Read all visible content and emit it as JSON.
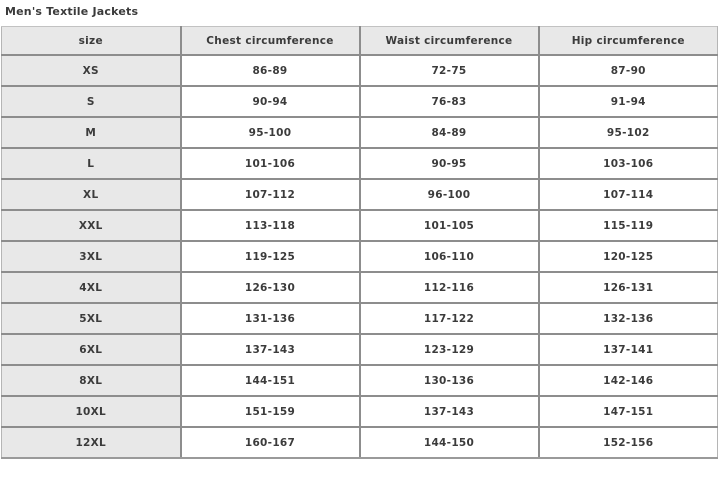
{
  "page": {
    "title": "Men's Textile Jackets"
  },
  "table": {
    "columns": [
      "size",
      "Chest circumference",
      "Waist circumference",
      "Hip circumference"
    ],
    "rows": [
      {
        "size": "XS",
        "values": [
          "86-89",
          "72-75",
          "87-90"
        ]
      },
      {
        "size": "S",
        "values": [
          "90-94",
          "76-83",
          "91-94"
        ]
      },
      {
        "size": "M",
        "values": [
          "95-100",
          "84-89",
          "95-102"
        ]
      },
      {
        "size": "L",
        "values": [
          "101-106",
          "90-95",
          "103-106"
        ]
      },
      {
        "size": "XL",
        "values": [
          "107-112",
          "96-100",
          "107-114"
        ]
      },
      {
        "size": "XXL",
        "values": [
          "113-118",
          "101-105",
          "115-119"
        ]
      },
      {
        "size": "3XL",
        "values": [
          "119-125",
          "106-110",
          "120-125"
        ]
      },
      {
        "size": "4XL",
        "values": [
          "126-130",
          "112-116",
          "126-131"
        ]
      },
      {
        "size": "5XL",
        "values": [
          "131-136",
          "117-122",
          "132-136"
        ]
      },
      {
        "size": "6XL",
        "values": [
          "137-143",
          "123-129",
          "137-141"
        ]
      },
      {
        "size": "8XL",
        "values": [
          "144-151",
          "130-136",
          "142-146"
        ]
      },
      {
        "size": "10XL",
        "values": [
          "151-159",
          "137-143",
          "147-151"
        ]
      },
      {
        "size": "12XL",
        "values": [
          "160-167",
          "144-150",
          "152-156"
        ]
      }
    ]
  },
  "colors": {
    "header_background": "#e8e8e8",
    "size_column_background": "#e8e8e8",
    "row_background": "#ffffff",
    "border": "#8d8d8d",
    "text": "#3b3b3b"
  }
}
